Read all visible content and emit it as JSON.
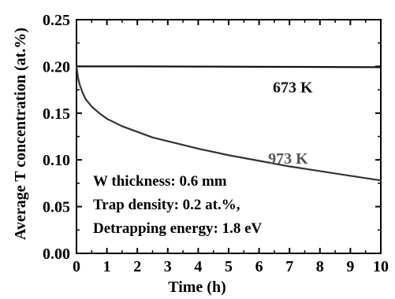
{
  "chart_data": {
    "type": "line",
    "title": "",
    "xlabel": "Time (h)",
    "ylabel": "Average T concentration (at.%)",
    "xlim": [
      0,
      10
    ],
    "ylim": [
      0,
      0.25
    ],
    "x_ticks": [
      "0",
      "1",
      "2",
      "3",
      "4",
      "5",
      "6",
      "7",
      "8",
      "9",
      "10"
    ],
    "y_ticks": [
      "0.00",
      "0.05",
      "0.10",
      "0.15",
      "0.20",
      "0.25"
    ],
    "grid": false,
    "series": [
      {
        "name": "673 K",
        "color": "#111111",
        "x": [
          0,
          1,
          2,
          3,
          4,
          5,
          6,
          7,
          8,
          9,
          10
        ],
        "y": [
          0.2,
          0.2,
          0.2,
          0.1999,
          0.1998,
          0.1997,
          0.1996,
          0.1995,
          0.1994,
          0.1993,
          0.1992
        ]
      },
      {
        "name": "973 K",
        "color": "#333333",
        "x": [
          0,
          0.05,
          0.1,
          0.2,
          0.3,
          0.5,
          0.75,
          1,
          1.5,
          2,
          2.5,
          3,
          4,
          5,
          6,
          7,
          8,
          9,
          10
        ],
        "y": [
          0.2,
          0.188,
          0.181,
          0.172,
          0.165,
          0.157,
          0.15,
          0.144,
          0.136,
          0.13,
          0.124,
          0.12,
          0.112,
          0.105,
          0.099,
          0.093,
          0.088,
          0.083,
          0.078
        ]
      }
    ],
    "annotations": [
      "W thickness: 0.6 mm",
      "Trap density: 0.2 at.%,",
      "Detrapping energy: 1.8 eV"
    ]
  }
}
